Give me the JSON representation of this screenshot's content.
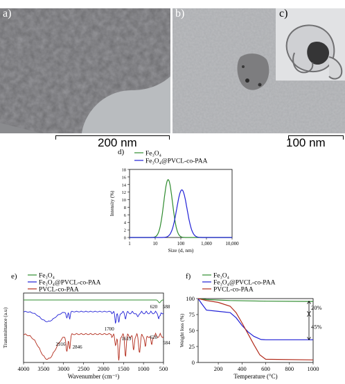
{
  "panels": {
    "a": {
      "label": "a)",
      "scale": "200 nm"
    },
    "b": {
      "label": "b)",
      "scale": "100 nm"
    },
    "c": {
      "label": "c)"
    }
  },
  "chart_data": [
    {
      "type": "line",
      "panel_label": "d)",
      "xlabel": "Size (d, nm)",
      "ylabel": "Intensity (%)",
      "xscale": "log",
      "xlim": [
        1,
        10000
      ],
      "ylim": [
        0,
        18
      ],
      "x_ticks": [
        "1",
        "10",
        "100",
        "1,000",
        "10,000"
      ],
      "y_ticks": [
        "0",
        "2",
        "4",
        "6",
        "8",
        "10",
        "12",
        "14",
        "16",
        "18"
      ],
      "legend_position": "top-left",
      "series": [
        {
          "name": "Fe₃O₄",
          "color": "#2e8b2e",
          "peak_x": 32,
          "peak_y": 15.3,
          "width_decades": 0.17
        },
        {
          "name": "Fe₃O₄@PVCL-co-PAA",
          "color": "#1f1fd6",
          "peak_x": 110,
          "peak_y": 12.6,
          "width_decades": 0.2
        }
      ]
    },
    {
      "type": "line",
      "panel_label": "e)",
      "xlabel": "Wavenumber (cm⁻¹)",
      "ylabel": "Transmittance (a.u)",
      "xlim": [
        4000,
        500
      ],
      "x_ticks": [
        "4000",
        "3500",
        "3000",
        "2500",
        "2000",
        "1500",
        "1000",
        "500"
      ],
      "legend_position": "top-left",
      "annotations": [
        "620",
        "588",
        "1700",
        "1619",
        "620",
        "584",
        "2916",
        "2846"
      ],
      "series": [
        {
          "name": "Fe₃O₄",
          "color": "#2e8b2e"
        },
        {
          "name": "Fe₃O₄@PVCL-co-PAA",
          "color": "#1f1fd6"
        },
        {
          "name": "PVCL-co-PAA",
          "color": "#b22a1a"
        }
      ]
    },
    {
      "type": "line",
      "panel_label": "f)",
      "xlabel": "Temperature (°C)",
      "ylabel": "Weight loss (%)",
      "xlim": [
        30,
        1000
      ],
      "ylim": [
        0,
        100
      ],
      "x_ticks": [
        "200",
        "400",
        "600",
        "800",
        "1000"
      ],
      "y_ticks": [
        "0",
        "25",
        "50",
        "75",
        "100"
      ],
      "legend_position": "top-left",
      "annotations": [
        "20%",
        "45%"
      ],
      "series": [
        {
          "name": "Fe₃O₄",
          "color": "#2e8b2e",
          "x": [
            30,
            100,
            300,
            600,
            1000
          ],
          "y": [
            100,
            98.5,
            97,
            96,
            95.5
          ]
        },
        {
          "name": "Fe₃O₄@PVCL-co-PAA",
          "color": "#1f1fd6",
          "x": [
            30,
            60,
            100,
            200,
            300,
            350,
            400,
            450,
            500,
            560,
            600,
            1000
          ],
          "y": [
            100,
            92,
            82,
            80,
            78,
            70,
            58,
            48,
            41,
            36,
            35.5,
            35.5
          ]
        },
        {
          "name": "PVCL-co-PAA",
          "color": "#b22a1a",
          "x": [
            30,
            100,
            200,
            300,
            350,
            400,
            450,
            500,
            550,
            600,
            1000
          ],
          "y": [
            100,
            97,
            94,
            88,
            78,
            62,
            45,
            28,
            12,
            5,
            4
          ]
        }
      ]
    }
  ]
}
